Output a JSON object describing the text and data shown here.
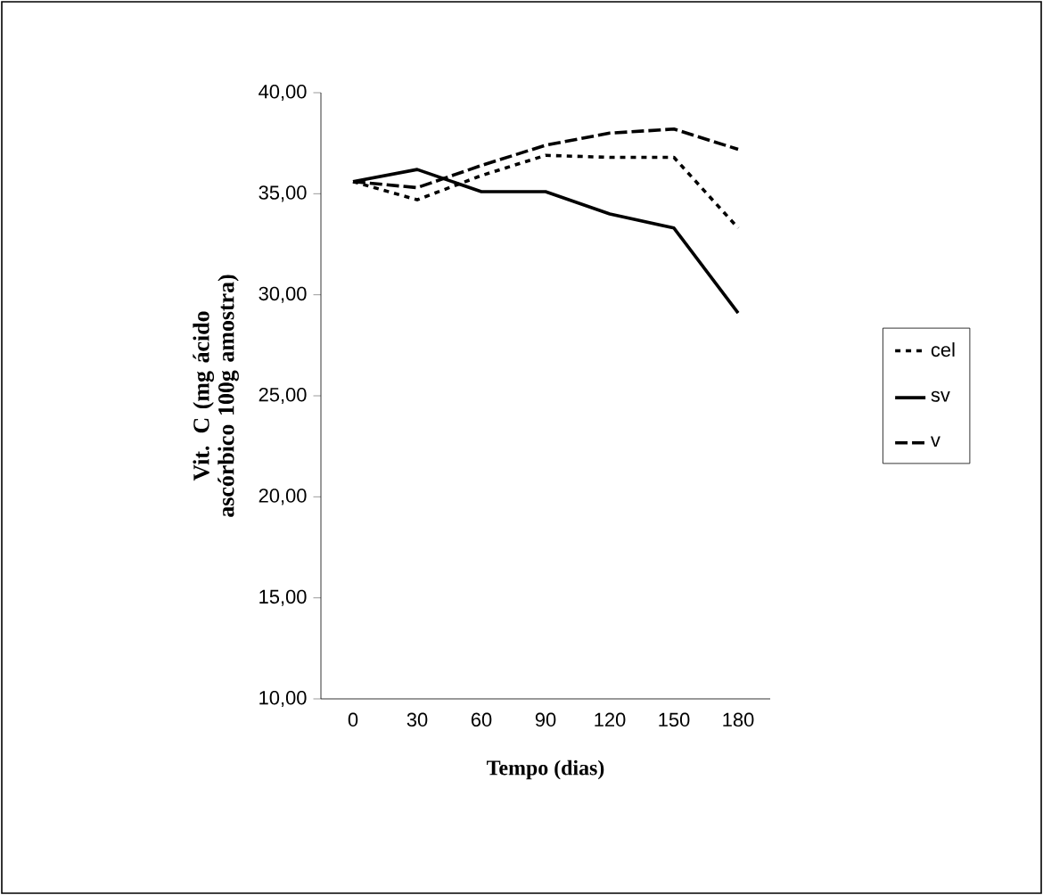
{
  "chart_data": {
    "type": "line",
    "xlabel": "Tempo (dias)",
    "ylabel": "Vit. C (mg ácido ascórbico 100g amostra)",
    "categories": [
      "0",
      "30",
      "60",
      "90",
      "120",
      "150",
      "180"
    ],
    "series": [
      {
        "name": "cel",
        "color": "#000000",
        "line_style": "dotted",
        "values": [
          35.6,
          34.7,
          35.9,
          36.9,
          36.8,
          36.8,
          33.3
        ]
      },
      {
        "name": "sv",
        "color": "#000000",
        "line_style": "solid",
        "values": [
          35.6,
          36.2,
          35.1,
          35.1,
          34.0,
          33.3,
          29.1
        ]
      },
      {
        "name": "v",
        "color": "#000000",
        "line_style": "dashed",
        "values": [
          35.6,
          35.3,
          36.4,
          37.4,
          38.0,
          38.2,
          37.2
        ]
      }
    ],
    "ylim": [
      10,
      40
    ],
    "yticks": [
      {
        "value": 10,
        "label": "10,00"
      },
      {
        "value": 15,
        "label": "15,00"
      },
      {
        "value": 20,
        "label": "20,00"
      },
      {
        "value": 25,
        "label": "25,00"
      },
      {
        "value": 30,
        "label": "30,00"
      },
      {
        "value": 35,
        "label": "35,00"
      },
      {
        "value": 40,
        "label": "40,00"
      }
    ],
    "grid": false,
    "legend": "right",
    "marker": "none"
  }
}
